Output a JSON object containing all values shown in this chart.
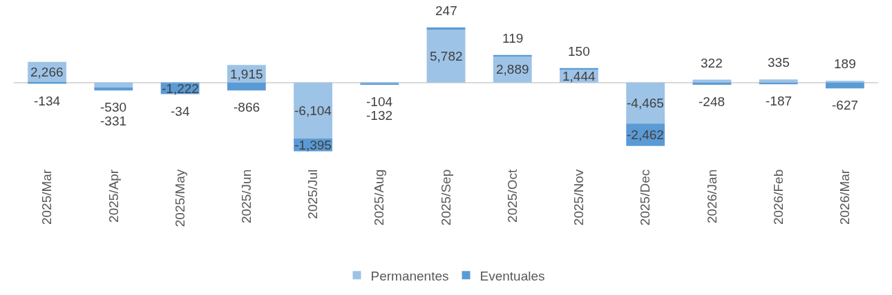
{
  "chart_data": {
    "type": "bar",
    "stacked": true,
    "legend": "bottom",
    "categories": [
      "2025/Mar",
      "2025/Apr",
      "2025/May",
      "2025/Jun",
      "2025/Jul",
      "2025/Aug",
      "2025/Sep",
      "2025/Oct",
      "2025/Nov",
      "2025/Dec",
      "2026/Jan",
      "2026/Feb",
      "2026/Mar"
    ],
    "series": [
      {
        "name": "Permanentes",
        "color": "#9dc3e6",
        "values": [
          2266,
          -530,
          -34,
          1915,
          -6104,
          -104,
          5782,
          2889,
          1444,
          -4465,
          322,
          335,
          189
        ],
        "value_labels": [
          "2,266",
          "-530",
          "-34",
          "1,915",
          "-6,104",
          "-104",
          "5,782",
          "2,889",
          "1,444",
          "-4,465",
          "322",
          "335",
          "189"
        ]
      },
      {
        "name": "Eventuales",
        "color": "#5b9bd5",
        "values": [
          -134,
          -331,
          -1222,
          -866,
          -1395,
          -132,
          247,
          119,
          150,
          -2462,
          -248,
          -187,
          -627
        ],
        "value_labels": [
          "-134",
          "-331",
          "-1,222",
          "-866",
          "-1,395",
          "-132",
          "247",
          "119",
          "150",
          "-2,462",
          "-248",
          "-187",
          "-627"
        ]
      }
    ]
  }
}
